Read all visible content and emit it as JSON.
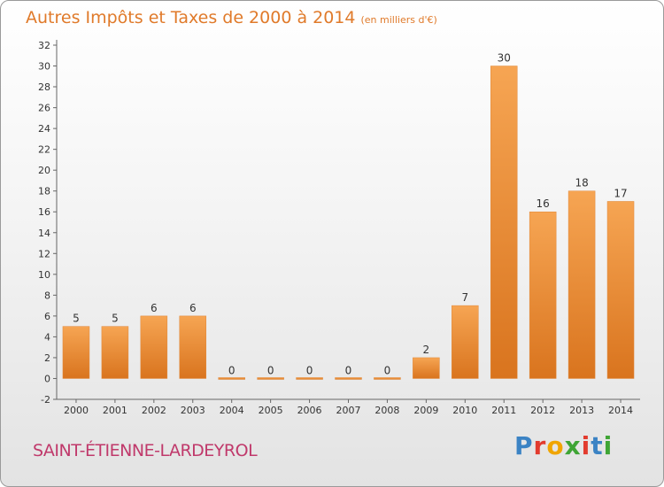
{
  "chart_title": "Autres Impôts et Taxes de 2000 à 2014",
  "chart_unit": "(en milliers d'€)",
  "commune": "SAINT-ÉTIENNE-LARDEYROL",
  "logo": {
    "text": "Proxiti",
    "letter_colors": [
      "#3b83c4",
      "#e23b2e",
      "#f0a500",
      "#3fa535",
      "#e23b2e",
      "#3b83c4",
      "#3fa535"
    ]
  },
  "chart_data": {
    "type": "bar",
    "categories": [
      "2000",
      "2001",
      "2002",
      "2003",
      "2004",
      "2005",
      "2006",
      "2007",
      "2008",
      "2009",
      "2010",
      "2011",
      "2012",
      "2013",
      "2014"
    ],
    "values": [
      5,
      5,
      6,
      6,
      0,
      0,
      0,
      0,
      0,
      2,
      7,
      30,
      16,
      18,
      17
    ],
    "ylim": [
      -2,
      32
    ],
    "yticks": [
      -2,
      0,
      2,
      4,
      6,
      8,
      10,
      12,
      14,
      16,
      18,
      20,
      22,
      24,
      26,
      28,
      30,
      32
    ],
    "grid": false,
    "bar_color": "#f0923a"
  }
}
